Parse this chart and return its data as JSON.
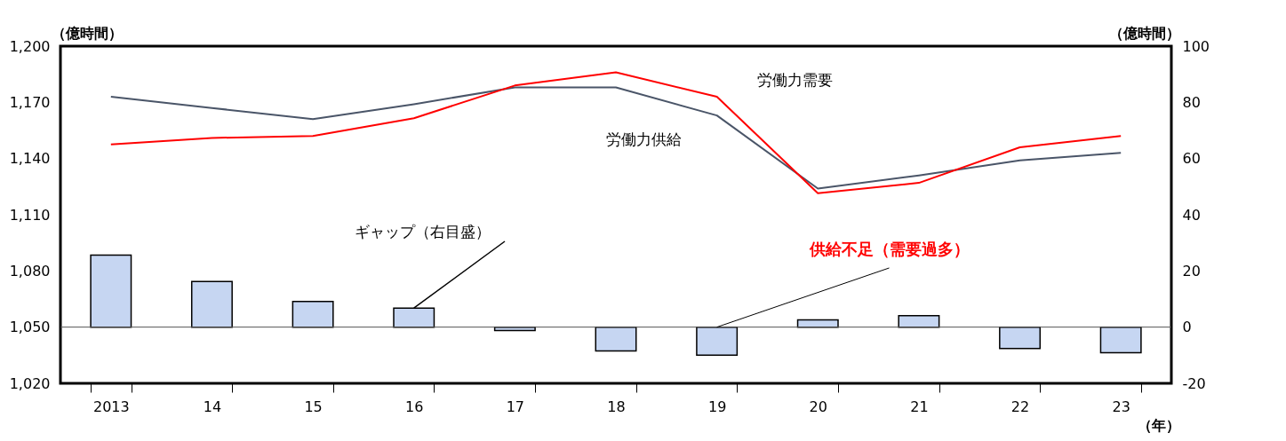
{
  "chart_data": {
    "type": "line",
    "categories": [
      "2013",
      "14",
      "15",
      "16",
      "17",
      "18",
      "19",
      "20",
      "21",
      "22",
      "23"
    ],
    "xlabel": "（年）",
    "ylabel": "（億時間）",
    "y2label": "（億時間）",
    "ylim": [
      1020,
      1200
    ],
    "yticks": [
      {
        "value": 1020,
        "label": "1,020"
      },
      {
        "value": 1050,
        "label": "1,050"
      },
      {
        "value": 1080,
        "label": "1,080"
      },
      {
        "value": 1110,
        "label": "1,110"
      },
      {
        "value": 1140,
        "label": "1,140"
      },
      {
        "value": 1170,
        "label": "1,170"
      },
      {
        "value": 1200,
        "label": "1,200"
      }
    ],
    "y2lim": [
      -20,
      100
    ],
    "y2ticks": [
      -20,
      0,
      20,
      40,
      60,
      80,
      100
    ],
    "series": [
      {
        "name": "ギャップ（右目盛）",
        "type": "bar",
        "axis": "y2",
        "color": "#c6d6f2",
        "values": [
          25.6,
          16.2,
          9.1,
          6.8,
          -1.2,
          -8.5,
          -10,
          2.6,
          4.1,
          -7.6,
          -9.1
        ]
      },
      {
        "name": "労働力供給",
        "color": "#4a5568",
        "values": [
          1173,
          1167,
          1161,
          1169,
          1178,
          1178,
          1163,
          1124,
          1131,
          1139,
          1143
        ]
      },
      {
        "name": "労働力需要",
        "color": "#ff0000",
        "values": [
          1147.5,
          1151,
          1152,
          1161.5,
          1179,
          1186,
          1173,
          1121.5,
          1127,
          1146,
          1152
        ]
      }
    ],
    "ref_lines": [
      {
        "axis": "y2",
        "value": 0,
        "color": "#555555"
      }
    ],
    "annotations": [
      {
        "text": "供給不足（需要過多）",
        "x": "19",
        "y": 1050
      }
    ],
    "grid": false,
    "marker": "none",
    "line_style": "solid"
  }
}
